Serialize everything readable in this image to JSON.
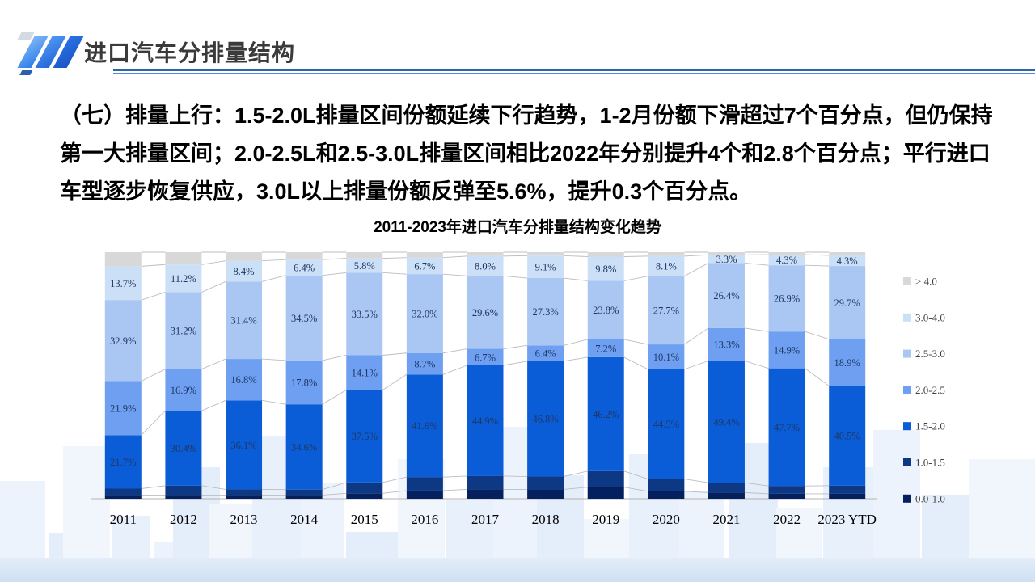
{
  "slide": {
    "header": {
      "title": "进口汽车分排量结构"
    },
    "body_lines": [
      "（七）排量上行：1.5-2.0L排量区间份额延续下行趋势，1-2月份额下滑超过7个百分点，但仍保持",
      "第一大排量区间；2.0-2.5L和2.5-3.0L排量区间相比2022年分别提升4个和2.8个百分点；平行进口",
      "车型逐步恢复供应，3.0L以上排量份额反弹至5.6%，提升0.3个百分点。"
    ],
    "theme": {
      "rule_dark_blue": "#2b66ad",
      "rule_light_blue": "#4d8fd6",
      "logo_blues": [
        "#7db7f7",
        "#2f7de9",
        "#1b55c4"
      ],
      "skyline_light_blue": "#e8f0fb"
    }
  },
  "chart_data": {
    "type": "bar",
    "stacked": true,
    "unit": "%",
    "ylim": [
      0,
      100
    ],
    "grid": false,
    "legend_position": "right",
    "title": "2011-2023年进口汽车分排量结构变化趋势",
    "categories": [
      "2011",
      "2012",
      "2013",
      "2014",
      "2015",
      "2016",
      "2017",
      "2018",
      "2019",
      "2020",
      "2021",
      "2022",
      "2023 YTD"
    ],
    "series": [
      {
        "name": "0.0-1.0",
        "color": "#05205e",
        "label_color": "#1f3864",
        "labels_shown": false,
        "values_estimated": true,
        "values": [
          1.5,
          1.5,
          1.5,
          1.5,
          2.2,
          3.3,
          3.8,
          3.8,
          4.7,
          3.0,
          2.5,
          2.0,
          2.0
        ]
      },
      {
        "name": "1.0-1.5",
        "color": "#0d3883",
        "label_color": "#1f3864",
        "labels_shown": false,
        "values_estimated": true,
        "values": [
          2.6,
          3.8,
          2.3,
          2.2,
          4.4,
          5.5,
          5.4,
          5.2,
          6.5,
          5.0,
          4.0,
          3.2,
          3.3
        ]
      },
      {
        "name": "1.5-2.0",
        "color": "#0b5cd7",
        "label_color": "#1f3864",
        "labels_shown": true,
        "values_estimated": false,
        "values": [
          21.7,
          30.4,
          36.1,
          34.6,
          37.5,
          41.6,
          44.9,
          46.8,
          46.2,
          44.5,
          49.4,
          47.7,
          40.5
        ]
      },
      {
        "name": "2.0-2.5",
        "color": "#6e9ff1",
        "label_color": "#1f3864",
        "labels_shown": true,
        "values_estimated": false,
        "values": [
          21.9,
          16.9,
          16.8,
          17.8,
          14.1,
          8.7,
          6.7,
          6.4,
          7.2,
          10.1,
          13.3,
          14.9,
          18.9
        ]
      },
      {
        "name": "2.5-3.0",
        "color": "#a9c7f2",
        "label_color": "#1f3864",
        "labels_shown": true,
        "values_estimated": false,
        "values": [
          32.9,
          31.2,
          31.4,
          34.5,
          33.5,
          32.0,
          29.6,
          27.3,
          23.8,
          27.7,
          26.4,
          26.9,
          29.7
        ]
      },
      {
        "name": "3.0-4.0",
        "color": "#cbdff7",
        "label_color": "#1f3864",
        "labels_shown": true,
        "values_estimated": false,
        "values": [
          13.7,
          11.2,
          8.4,
          6.4,
          5.8,
          6.7,
          8.0,
          9.1,
          9.8,
          8.1,
          3.3,
          4.3,
          4.3
        ]
      },
      {
        "name": "> 4.0",
        "color": "#d8d8d8",
        "label_color": "#1f3864",
        "labels_shown": false,
        "values_estimated": true,
        "values": [
          5.7,
          5.0,
          3.5,
          3.0,
          2.5,
          2.2,
          1.6,
          1.4,
          1.8,
          1.6,
          1.1,
          1.0,
          1.3
        ]
      }
    ],
    "legend_order_top_to_bottom": [
      "> 4.0",
      "3.0-4.0",
      "2.5-3.0",
      "2.0-2.5",
      "1.5-2.0",
      "1.0-1.5",
      "0.0-1.0"
    ],
    "axis_color": "#b3b3b3",
    "connector_line_color": "#bdbdbd"
  }
}
